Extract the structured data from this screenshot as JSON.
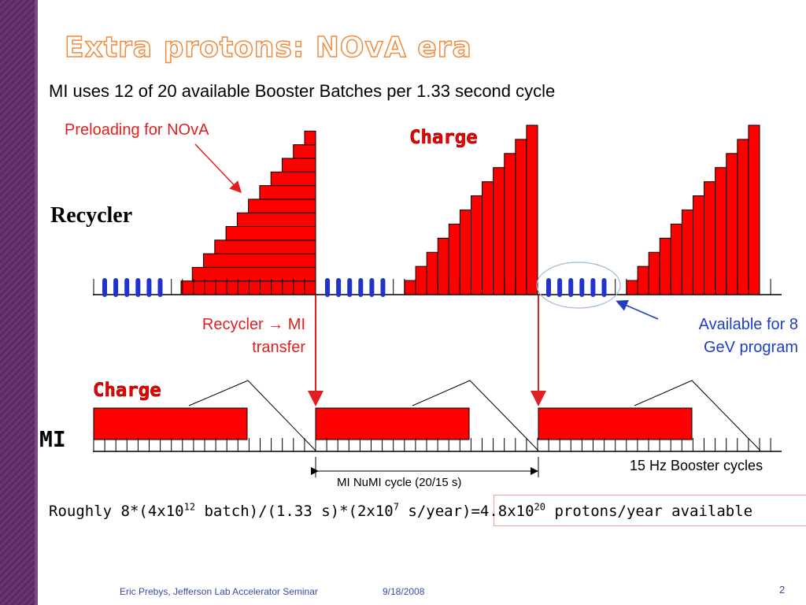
{
  "slide": {
    "title": "Extra protons: NOvA era",
    "subtitle": "MI uses 12 of 20 available Booster Batches per 1.33 second cycle",
    "preloading_label": "Preloading for NOvA",
    "charge_label_top": "Charge",
    "charge_label_bottom": "Charge",
    "recycler_label": "Recycler",
    "mi_label": "MI",
    "transfer_label_line1": "Recycler → MI",
    "transfer_label_line2": "transfer",
    "available_line1": "Available for 8",
    "available_line2": "GeV program",
    "booster_cycles_label": "15 Hz Booster cycles",
    "numi_cycle_label": "MI NuMI cycle (20/15 s)",
    "formula": {
      "p1": "Roughly 8*(4x10",
      "e1": "12",
      "p2": " batch)/(1.33 s)*(2x10",
      "e2": "7",
      "p3": " s/year)=",
      "p4": "4.8x10",
      "e3": "20",
      "p5": " protons/year available"
    },
    "footer_author": "Eric Prebys, Jefferson Lab Accelerator Seminar",
    "footer_date": "9/18/2008",
    "page_number": "2"
  },
  "colors": {
    "charge_fill": "#ff0000",
    "batch_blue": "#2233cc",
    "title_outline": "#f08a3c",
    "footer_text": "#3a4aa8"
  }
}
